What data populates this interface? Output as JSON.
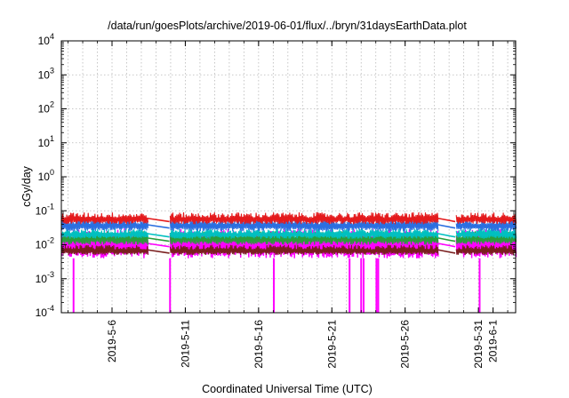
{
  "chart_data": {
    "type": "line",
    "title": "/data/run/goesPlots/archive/2019-06-01/flux/../bryn/31daysEarthData.plot",
    "xlabel": "Coordinated Universal Time (UTC)",
    "ylabel": "cGy/day",
    "y_scale": "log",
    "ylim": [
      0.0001,
      10000
    ],
    "y_ticks": [
      {
        "value": 0.0001,
        "base": "10",
        "exp": "-4"
      },
      {
        "value": 0.001,
        "base": "10",
        "exp": "-3"
      },
      {
        "value": 0.01,
        "base": "10",
        "exp": "-2"
      },
      {
        "value": 0.1,
        "base": "10",
        "exp": "-1"
      },
      {
        "value": 1,
        "base": "10",
        "exp": "0"
      },
      {
        "value": 10,
        "base": "10",
        "exp": "1"
      },
      {
        "value": 100,
        "base": "10",
        "exp": "2"
      },
      {
        "value": 1000,
        "base": "10",
        "exp": "3"
      },
      {
        "value": 10000,
        "base": "10",
        "exp": "4"
      }
    ],
    "xlim": [
      "2019-05-02T13:00",
      "2019-06-02T13:00"
    ],
    "x_ticks": [
      {
        "value": "2019-05-06",
        "label": "2019-5-6"
      },
      {
        "value": "2019-05-11",
        "label": "2019-5-11"
      },
      {
        "value": "2019-05-16",
        "label": "2019-5-16"
      },
      {
        "value": "2019-05-21",
        "label": "2019-5-21"
      },
      {
        "value": "2019-05-26",
        "label": "2019-5-26"
      },
      {
        "value": "2019-05-31",
        "label": "2019-5-31"
      },
      {
        "value": "2019-06-01",
        "label": "2019-6-1"
      }
    ],
    "grid": true,
    "legend": "none",
    "data_gaps": [
      [
        "2019-05-08T10:00",
        "2019-05-09T22:00"
      ],
      [
        "2019-05-28T06:00",
        "2019-05-29T10:00"
      ]
    ],
    "series": [
      {
        "color": "#e41a1c",
        "typical_range": [
          0.04,
          0.09
        ]
      },
      {
        "color": "#2b6fe0",
        "typical_range": [
          0.025,
          0.06
        ]
      },
      {
        "color": "#00c0c0",
        "typical_range": [
          0.015,
          0.03
        ]
      },
      {
        "color": "#2a9d3a",
        "typical_range": [
          0.01,
          0.025
        ]
      },
      {
        "color": "#7a1f1f",
        "typical_range": [
          0.005,
          0.01
        ]
      },
      {
        "color": "#ff00ff",
        "typical_range": [
          0.004,
          0.03
        ],
        "dropouts_to": 0.0001,
        "dropouts": [
          "2019-05-03T09:00",
          "2019-05-09T23:00",
          "2019-05-17T01:00",
          "2019-05-22T05:00",
          "2019-05-23T00:00",
          "2019-05-23T04:00",
          "2019-05-24T01:00",
          "2019-05-24T04:00",
          "2019-05-31T02:00"
        ]
      }
    ]
  }
}
